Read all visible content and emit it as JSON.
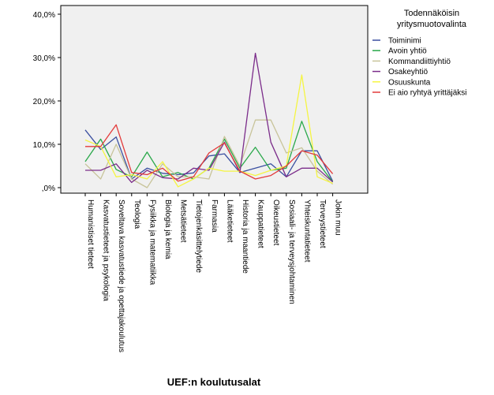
{
  "chart_data": {
    "type": "line",
    "title": "",
    "xlabel": "UEF:n koulutusalat",
    "ylabel": "",
    "ylim": [
      0,
      40
    ],
    "yticks": [
      "40,0%",
      "30,0%",
      "20,0%",
      "10,0%",
      ",0%"
    ],
    "grid": false,
    "legend_placement": "right",
    "legend_title": [
      "Todennäköisin",
      "yritysmuotovalinta"
    ],
    "categories": [
      "Humanistiset tieteet",
      "Kasvatustieteet ja psykologia",
      "Soveltava kasvatustiede ja opettajakoulutus",
      "Teologia",
      "Fysiikka ja matematiikka",
      "Biologia ja kemia",
      "Metsätieteet",
      "Tietojenkäsittelytiede",
      "Farmasia",
      "Lääketieteet",
      "Historia ja maantiede",
      "Kauppatieteet",
      "Oikeustieteet",
      "Sosiaali- ja terveysjohtaminen",
      "Yhteiskuntatieteet",
      "Terveystieteet",
      "Jokin muu"
    ],
    "series": [
      {
        "name": "Toiminimi",
        "color": "#3a4fa0",
        "values": [
          13.3,
          8.8,
          11.7,
          2.0,
          4.5,
          3.3,
          3.0,
          3.4,
          7.3,
          7.8,
          3.5,
          4.5,
          5.5,
          2.5,
          8.5,
          8.5,
          1.5
        ]
      },
      {
        "name": "Avoin yhtiö",
        "color": "#2aa84a",
        "values": [
          6.0,
          11.2,
          4.2,
          2.5,
          8.2,
          2.5,
          3.5,
          2.0,
          4.5,
          11.2,
          4.5,
          9.3,
          4.0,
          4.5,
          15.3,
          6.0,
          1.3
        ]
      },
      {
        "name": "Kommandiittiyhtiö",
        "color": "#c8c49a",
        "values": [
          5.5,
          2.0,
          10.0,
          2.0,
          0.0,
          5.5,
          2.5,
          2.5,
          2.0,
          11.8,
          5.0,
          15.6,
          15.6,
          8.0,
          9.2,
          3.8,
          0.8
        ]
      },
      {
        "name": "Osakeyhtiö",
        "color": "#7b2c8a",
        "values": [
          4.0,
          4.0,
          5.5,
          1.2,
          4.0,
          2.3,
          2.0,
          4.5,
          4.0,
          10.5,
          3.5,
          31.0,
          10.5,
          2.5,
          4.5,
          4.5,
          1.3
        ]
      },
      {
        "name": "Osuuskunta",
        "color": "#f5f542",
        "values": [
          11.0,
          9.5,
          2.5,
          3.0,
          2.0,
          6.0,
          0.2,
          2.0,
          4.5,
          3.8,
          3.8,
          2.8,
          4.0,
          5.0,
          26.0,
          2.5,
          1.0
        ]
      },
      {
        "name": "Ei aio ryhtyä yrittäjäksi",
        "color": "#e33a3a",
        "values": [
          9.5,
          9.5,
          14.5,
          3.5,
          3.0,
          4.5,
          1.5,
          2.5,
          8.0,
          10.3,
          3.8,
          2.0,
          2.8,
          5.0,
          8.5,
          7.5,
          3.2
        ]
      }
    ]
  }
}
